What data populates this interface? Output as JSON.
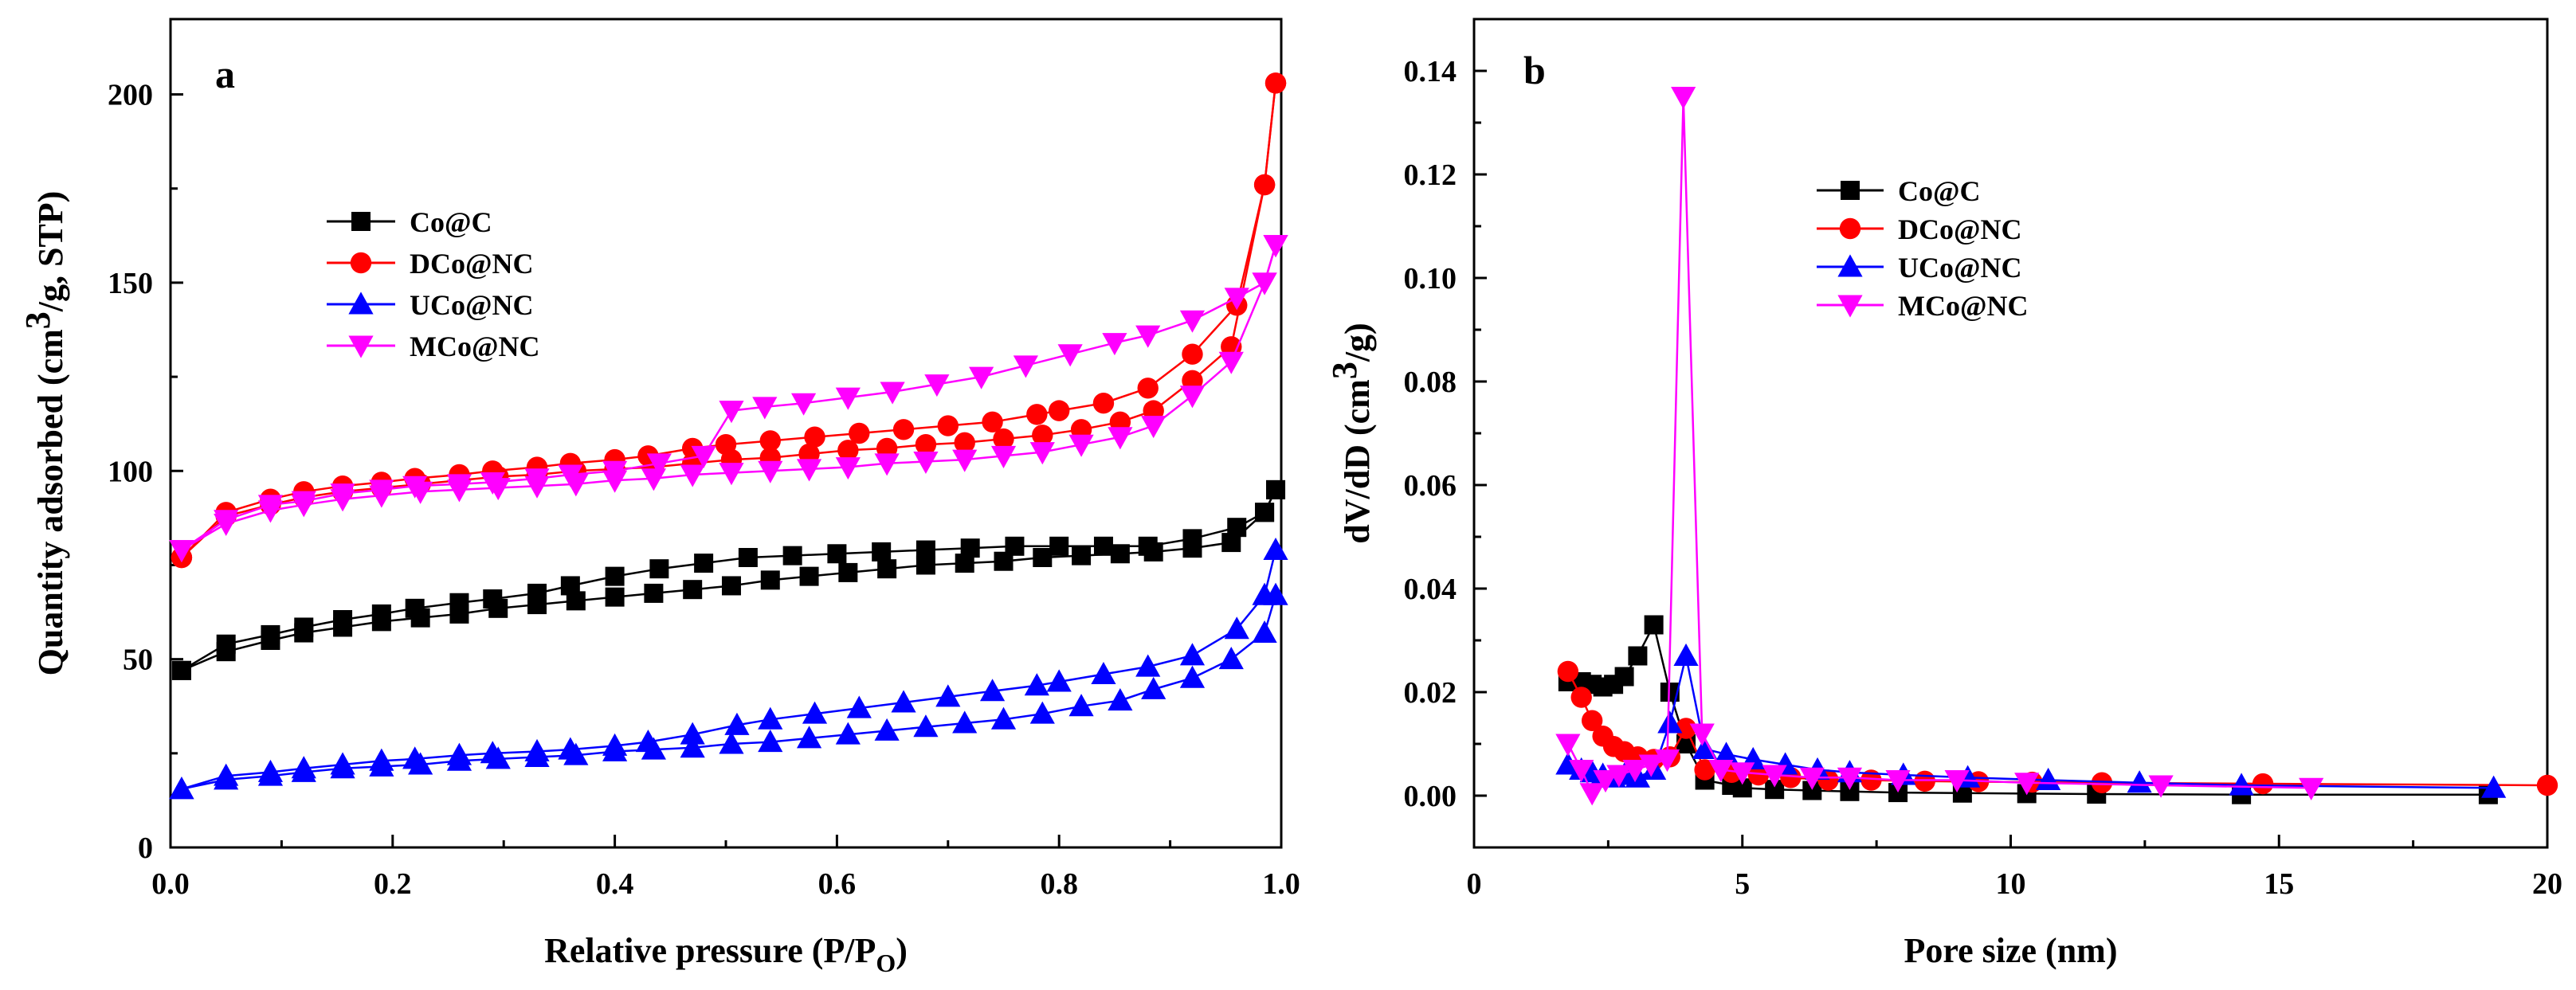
{
  "figure": {
    "panels": [
      "a",
      "b"
    ]
  },
  "chart_data": [
    {
      "type": "line",
      "panel_label": "a",
      "title": "",
      "xlabel": {
        "main": "Relative pressure (P/P",
        "sub": "O",
        "close": ")"
      },
      "ylabel": {
        "pre": "Quantity adsorbed (cm",
        "sup": "3",
        "post": "/g, STP)"
      },
      "xlim": [
        0.0,
        1.0
      ],
      "ylim": [
        0,
        220
      ],
      "xticks": [
        0.0,
        0.2,
        0.4,
        0.6,
        0.8,
        1.0
      ],
      "xtick_labels": [
        "0.0",
        "0.2",
        "0.4",
        "0.6",
        "0.8",
        "1.0"
      ],
      "yticks": [
        0,
        50,
        100,
        150,
        200
      ],
      "ytick_labels": [
        "0",
        "50",
        "100",
        "150",
        "200"
      ],
      "grid": false,
      "legend_position": "upper-left",
      "series": [
        {
          "name": "Co@C",
          "color": "#000000",
          "marker": "square",
          "adsorption": {
            "x": [
              0.01,
              0.05,
              0.09,
              0.12,
              0.155,
              0.19,
              0.225,
              0.26,
              0.295,
              0.33,
              0.365,
              0.4,
              0.435,
              0.47,
              0.505,
              0.54,
              0.575,
              0.61,
              0.645,
              0.68,
              0.715,
              0.75,
              0.785,
              0.82,
              0.855,
              0.885,
              0.92,
              0.955,
              0.985,
              0.995
            ],
            "y": [
              47,
              52,
              55,
              57,
              58.5,
              60,
              61,
              62,
              63.5,
              64.5,
              65.5,
              66.5,
              67.5,
              68.5,
              69.5,
              71,
              72,
              73,
              74,
              75,
              75.5,
              76,
              77,
              77.5,
              78,
              78.5,
              79.5,
              81,
              89,
              95
            ]
          },
          "desorption": {
            "x": [
              0.995,
              0.985,
              0.96,
              0.92,
              0.88,
              0.84,
              0.8,
              0.76,
              0.72,
              0.68,
              0.64,
              0.6,
              0.56,
              0.52,
              0.48,
              0.44,
              0.4,
              0.36,
              0.33,
              0.29,
              0.26,
              0.22,
              0.19,
              0.155,
              0.12,
              0.09,
              0.05,
              0.01
            ],
            "y": [
              95,
              89,
              85,
              82,
              80,
              80,
              80,
              80,
              79.5,
              79,
              78.5,
              78,
              77.5,
              77,
              75.5,
              74,
              72,
              69.5,
              67.5,
              66,
              65,
              63.5,
              62,
              60.5,
              58.5,
              56.5,
              54,
              47
            ]
          }
        },
        {
          "name": "DCo@NC",
          "color": "#ff0000",
          "marker": "circle",
          "adsorption": {
            "x": [
              0.01,
              0.05,
              0.09,
              0.12,
              0.155,
              0.19,
              0.225,
              0.26,
              0.295,
              0.33,
              0.365,
              0.4,
              0.435,
              0.47,
              0.505,
              0.54,
              0.575,
              0.61,
              0.645,
              0.68,
              0.715,
              0.75,
              0.785,
              0.82,
              0.855,
              0.885,
              0.92,
              0.955,
              0.985,
              0.995
            ],
            "y": [
              77,
              88,
              91,
              93,
              94.5,
              95.5,
              96.5,
              97.5,
              98.5,
              99,
              100,
              100.5,
              101,
              102,
              103,
              103.5,
              104.5,
              105.5,
              106,
              107,
              107.5,
              108.5,
              109.5,
              111,
              113,
              116,
              124,
              133,
              176,
              203
            ]
          },
          "desorption": {
            "x": [
              0.995,
              0.985,
              0.96,
              0.92,
              0.88,
              0.84,
              0.8,
              0.78,
              0.74,
              0.7,
              0.66,
              0.62,
              0.58,
              0.54,
              0.5,
              0.47,
              0.43,
              0.4,
              0.36,
              0.33,
              0.29,
              0.26,
              0.22,
              0.19,
              0.155,
              0.12,
              0.09,
              0.05,
              0.01
            ],
            "y": [
              203,
              176,
              144,
              131,
              122,
              118,
              116,
              115,
              113,
              112,
              111,
              110,
              109,
              108,
              107,
              106,
              104,
              103,
              102,
              101,
              100,
              99,
              98,
              97,
              96,
              94.5,
              92.5,
              89,
              77
            ]
          }
        },
        {
          "name": "UCo@NC",
          "color": "#0000ff",
          "marker": "triangle-up",
          "adsorption": {
            "x": [
              0.01,
              0.05,
              0.09,
              0.12,
              0.155,
              0.19,
              0.225,
              0.26,
              0.295,
              0.33,
              0.365,
              0.4,
              0.435,
              0.47,
              0.505,
              0.54,
              0.575,
              0.61,
              0.645,
              0.68,
              0.715,
              0.75,
              0.785,
              0.82,
              0.855,
              0.885,
              0.92,
              0.955,
              0.985,
              0.995
            ],
            "y": [
              15.5,
              18,
              19,
              20,
              21,
              21.5,
              22,
              23,
              23.5,
              24,
              24.5,
              25.5,
              26,
              26.5,
              27.5,
              28,
              29,
              30,
              31,
              32,
              33,
              34,
              35.5,
              37.5,
              39,
              42,
              45,
              50,
              57,
              67
            ]
          },
          "desorption": {
            "x": [
              0.995,
              0.985,
              0.96,
              0.92,
              0.88,
              0.84,
              0.8,
              0.78,
              0.74,
              0.7,
              0.66,
              0.62,
              0.58,
              0.54,
              0.51,
              0.47,
              0.43,
              0.4,
              0.36,
              0.33,
              0.29,
              0.26,
              0.22,
              0.19,
              0.155,
              0.12,
              0.09,
              0.05,
              0.01
            ],
            "y": [
              79,
              67,
              58,
              51,
              48,
              46,
              44,
              43,
              41.5,
              40,
              38.5,
              37,
              35.5,
              34,
              32.5,
              30,
              28,
              27,
              26,
              25.5,
              25,
              24.5,
              23.5,
              23,
              22,
              21,
              20,
              19,
              15.5
            ]
          }
        },
        {
          "name": "MCo@NC",
          "color": "#ff00ff",
          "marker": "triangle-down",
          "adsorption": {
            "x": [
              0.01,
              0.05,
              0.09,
              0.12,
              0.155,
              0.19,
              0.225,
              0.26,
              0.295,
              0.33,
              0.365,
              0.4,
              0.435,
              0.47,
              0.505,
              0.54,
              0.575,
              0.61,
              0.645,
              0.68,
              0.715,
              0.75,
              0.785,
              0.82,
              0.855,
              0.885,
              0.92,
              0.955,
              0.985,
              0.995
            ],
            "y": [
              79,
              86,
              89.5,
              91,
              92.5,
              93.5,
              94.5,
              95,
              95.5,
              96,
              96.5,
              97.5,
              98,
              99,
              99.5,
              100,
              100.5,
              101,
              102,
              102.5,
              103,
              104,
              105,
              107,
              109,
              112,
              120,
              129,
              150,
              160
            ]
          },
          "desorption": {
            "x": [
              0.995,
              0.985,
              0.96,
              0.92,
              0.88,
              0.85,
              0.81,
              0.77,
              0.73,
              0.69,
              0.65,
              0.61,
              0.57,
              0.535,
              0.505,
              0.48,
              0.44,
              0.4,
              0.36,
              0.33,
              0.29,
              0.26,
              0.22,
              0.19,
              0.155,
              0.12,
              0.09,
              0.05,
              0.01
            ],
            "y": [
              160,
              150,
              146,
              140,
              136,
              134,
              131,
              128,
              125,
              123,
              121,
              119.5,
              118,
              117,
              116,
              104,
              102,
              100,
              99,
              98,
              97,
              96.5,
              96,
              95,
              94,
              92,
              91,
              87,
              79
            ]
          }
        }
      ]
    },
    {
      "type": "line",
      "panel_label": "b",
      "title": "",
      "xlabel": {
        "main": "Pore size (nm)"
      },
      "ylabel": {
        "pre": "dV/dD (cm",
        "sup": "3",
        "post": "/g)"
      },
      "xlim": [
        0,
        20
      ],
      "ylim": [
        -0.01,
        0.15
      ],
      "xticks": [
        0,
        5,
        10,
        15,
        20
      ],
      "xtick_labels": [
        "0",
        "5",
        "10",
        "15",
        "20"
      ],
      "yticks": [
        0.0,
        0.02,
        0.04,
        0.06,
        0.08,
        0.1,
        0.12,
        0.14
      ],
      "ytick_labels": [
        "0.00",
        "0.02",
        "0.04",
        "0.06",
        "0.08",
        "0.10",
        "0.12",
        "0.14"
      ],
      "grid": false,
      "legend_position": "center-right",
      "series": [
        {
          "name": "Co@C",
          "color": "#000000",
          "marker": "square",
          "x": [
            1.75,
            2.0,
            2.2,
            2.4,
            2.6,
            2.8,
            3.05,
            3.35,
            3.65,
            3.95,
            4.3,
            4.8,
            5.0,
            5.6,
            6.3,
            7.0,
            7.9,
            9.1,
            10.3,
            11.6,
            14.3,
            18.9
          ],
          "y": [
            0.022,
            0.022,
            0.0215,
            0.021,
            0.0215,
            0.023,
            0.027,
            0.033,
            0.02,
            0.01,
            0.003,
            0.002,
            0.0015,
            0.0012,
            0.001,
            0.0008,
            0.0006,
            0.0005,
            0.0004,
            0.0003,
            0.0002,
            0.0002
          ]
        },
        {
          "name": "DCo@NC",
          "color": "#ff0000",
          "marker": "circle",
          "x": [
            1.75,
            2.0,
            2.2,
            2.4,
            2.6,
            2.8,
            3.05,
            3.35,
            3.65,
            3.95,
            4.3,
            4.8,
            5.3,
            5.9,
            6.6,
            7.4,
            8.4,
            9.4,
            10.4,
            11.7,
            14.7,
            20.0
          ],
          "y": [
            0.024,
            0.019,
            0.0145,
            0.0115,
            0.0095,
            0.0085,
            0.0075,
            0.007,
            0.0075,
            0.013,
            0.005,
            0.0045,
            0.004,
            0.0035,
            0.003,
            0.003,
            0.0028,
            0.0027,
            0.0026,
            0.0025,
            0.0023,
            0.002
          ]
        },
        {
          "name": "UCo@NC",
          "color": "#0000ff",
          "marker": "triangle-up",
          "x": [
            1.75,
            2.0,
            2.2,
            2.4,
            2.6,
            2.8,
            3.05,
            3.35,
            3.65,
            3.95,
            4.3,
            4.7,
            5.2,
            5.8,
            6.4,
            7.0,
            8.0,
            9.2,
            10.7,
            12.4,
            14.3,
            19.0
          ],
          "y": [
            0.006,
            0.005,
            0.0045,
            0.004,
            0.0035,
            0.004,
            0.0035,
            0.005,
            0.014,
            0.027,
            0.009,
            0.008,
            0.007,
            0.006,
            0.005,
            0.0045,
            0.004,
            0.0035,
            0.003,
            0.0025,
            0.002,
            0.0015
          ]
        },
        {
          "name": "MCo@NC",
          "color": "#ff00ff",
          "marker": "triangle-down",
          "x": [
            1.75,
            2.0,
            2.2,
            2.45,
            2.7,
            3.0,
            3.3,
            3.6,
            3.9,
            4.25,
            4.6,
            5.0,
            5.6,
            6.3,
            7.0,
            7.9,
            9.0,
            10.3,
            12.8,
            15.6
          ],
          "y": [
            0.01,
            0.005,
            0.0005,
            0.003,
            0.004,
            0.005,
            0.006,
            0.007,
            0.135,
            0.012,
            0.005,
            0.0045,
            0.004,
            0.0035,
            0.0035,
            0.003,
            0.003,
            0.0025,
            0.002,
            0.0015
          ]
        }
      ]
    }
  ]
}
